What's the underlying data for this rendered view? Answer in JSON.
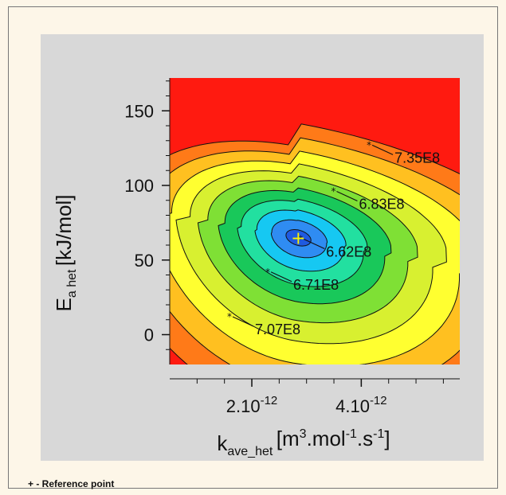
{
  "chart_data": {
    "type": "contour",
    "ylabel": {
      "main": "E",
      "sub": "a het",
      "unit": "[kJ/mol]"
    },
    "xlabel": {
      "main": "k",
      "sub": "ave_het",
      "unit_parts": [
        "[m",
        "3",
        ".mol",
        "-1",
        ".s",
        "-1",
        "]"
      ]
    },
    "x_ticks": [
      {
        "value": 2e-12,
        "base": "2.10",
        "exp": "-12"
      },
      {
        "value": 4e-12,
        "base": "4.10",
        "exp": "-12"
      }
    ],
    "y_ticks": [
      {
        "value": 0,
        "label": "0"
      },
      {
        "value": 50,
        "label": "50"
      },
      {
        "value": 100,
        "label": "100"
      },
      {
        "value": 150,
        "label": "150"
      }
    ],
    "xlim": [
      5e-13,
      5.8e-12
    ],
    "ylim": [
      -20,
      172
    ],
    "minimum": {
      "x": 2.85e-12,
      "y": 65
    },
    "reference_point": {
      "x": 2.85e-12,
      "y": 65,
      "marker": "+"
    },
    "contour_labels": [
      {
        "text": "6.62E8",
        "x": 2.95e-12,
        "y": 64
      },
      {
        "text": "6.71E8",
        "x": 2.35e-12,
        "y": 42
      },
      {
        "text": "6.83E8",
        "x": 3.55e-12,
        "y": 96
      },
      {
        "text": "7.07E8",
        "x": 1.65e-12,
        "y": 12
      },
      {
        "text": "7.35E8",
        "x": 4.2e-12,
        "y": 127
      }
    ],
    "colormap": [
      "#1f5ae0",
      "#2f8cf2",
      "#16c8f2",
      "#22e0a0",
      "#19c85a",
      "#7fe035",
      "#d8f030",
      "#ffff30",
      "#ffc020",
      "#ff7a18",
      "#ff1a10"
    ]
  },
  "footnote": "+ - Reference point"
}
